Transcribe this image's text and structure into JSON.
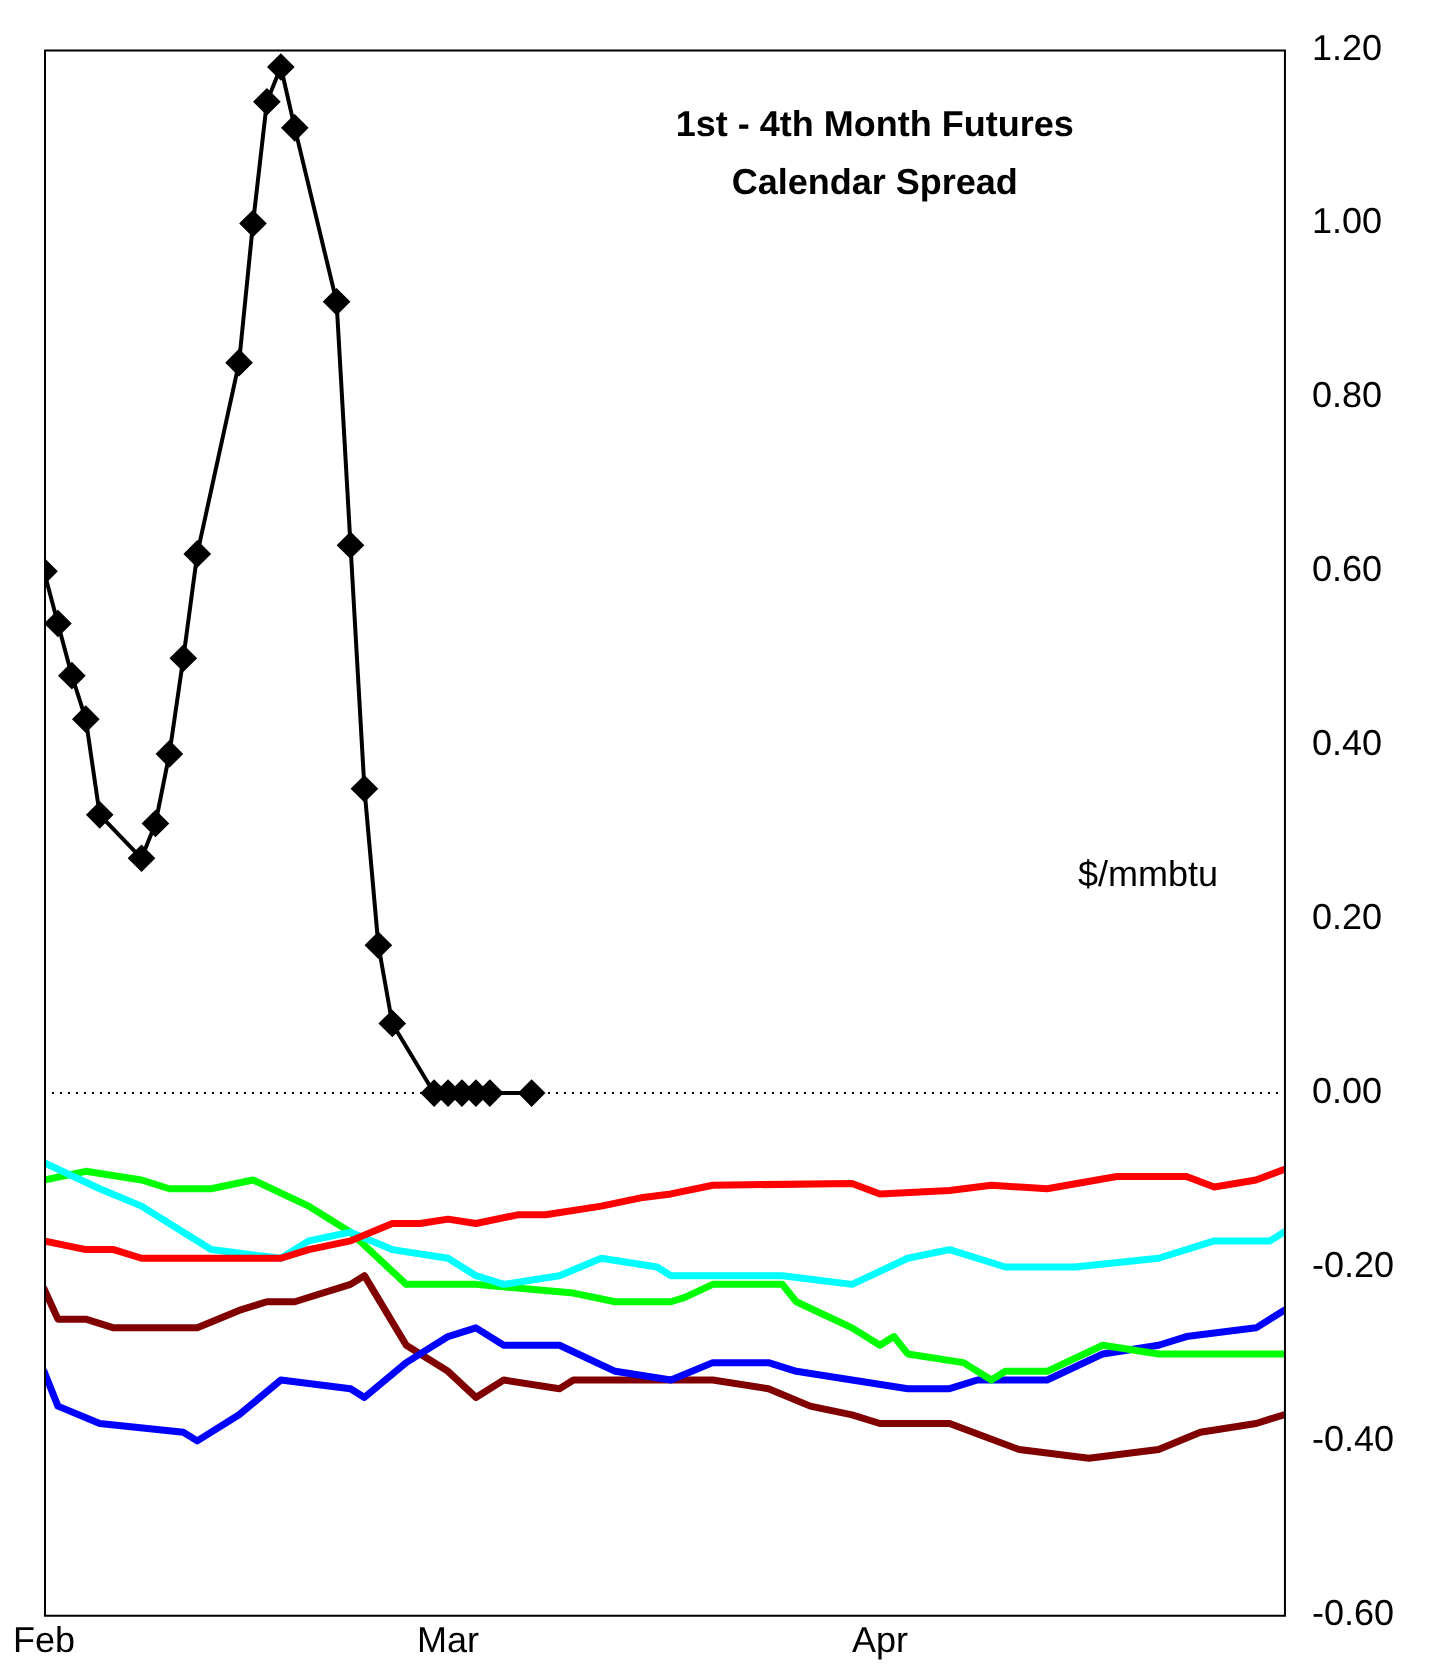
{
  "chart_data": {
    "type": "line",
    "title": "1st - 4th Month Futures\nCalendar Spread",
    "ylabel": "$/mmbtu",
    "xlim": [
      "--02-01",
      "--04-30"
    ],
    "xticks": [
      {
        "value": "--02-01",
        "label": "Feb"
      },
      {
        "value": "--03-01",
        "label": "Mar"
      },
      {
        "value": "--04-01",
        "label": "Apr"
      }
    ],
    "ylim": [
      -0.6,
      1.2
    ],
    "yticks": [
      {
        "value": -0.6,
        "label": "-0.60"
      },
      {
        "value": -0.4,
        "label": "-0.40"
      },
      {
        "value": -0.2,
        "label": "-0.20"
      },
      {
        "value": 0,
        "label": "0.00"
      },
      {
        "value": 0.2,
        "label": "0.20"
      },
      {
        "value": 0.4,
        "label": "0.40"
      },
      {
        "value": 0.6,
        "label": "0.60"
      },
      {
        "value": 0.8,
        "label": "0.80"
      },
      {
        "value": 1,
        "label": "1.00"
      },
      {
        "value": 1.2,
        "label": "1.20"
      }
    ],
    "grid": false,
    "legend": false,
    "ref_lines": [
      {
        "axis": "y",
        "value": 0,
        "color": "#000000",
        "line_style": "dotted"
      }
    ],
    "series": [
      {
        "color": "#ff0000",
        "marker": "none",
        "x": [
          "--02-01",
          "--02-04",
          "--02-06",
          "--02-08",
          "--02-11",
          "--02-16",
          "--02-18",
          "--02-20",
          "--02-23",
          "--02-26",
          "--02-28",
          "--03-01",
          "--03-03",
          "--03-06",
          "--03-08",
          "--03-12",
          "--03-15",
          "--03-17",
          "--03-20",
          "--03-30",
          "--04-01",
          "--04-06",
          "--04-09",
          "--04-13",
          "--04-18",
          "--04-23",
          "--04-25",
          "--04-28",
          "--04-30"
        ],
        "values": [
          -0.17,
          -0.18,
          -0.18,
          -0.19,
          -0.19,
          -0.19,
          -0.19,
          -0.18,
          -0.17,
          -0.15,
          -0.15,
          -0.145,
          -0.15,
          -0.14,
          -0.14,
          -0.13,
          -0.12,
          -0.116,
          -0.106,
          -0.104,
          -0.116,
          -0.112,
          -0.106,
          -0.11,
          -0.096,
          -0.096,
          -0.108,
          -0.1,
          -0.088
        ]
      },
      {
        "color": "#00ffff",
        "marker": "none",
        "x": [
          "--02-01",
          "--02-05",
          "--02-08",
          "--02-11",
          "--02-13",
          "--02-18",
          "--02-20",
          "--02-23",
          "--02-26",
          "--03-01",
          "--03-03",
          "--03-05",
          "--03-09",
          "--03-12",
          "--03-16",
          "--03-17",
          "--03-20",
          "--03-25",
          "--03-30",
          "--04-03",
          "--04-06",
          "--04-10",
          "--04-15",
          "--04-21",
          "--04-25",
          "--04-29",
          "--04-30"
        ],
        "values": [
          -0.08,
          -0.11,
          -0.13,
          -0.16,
          -0.18,
          -0.19,
          -0.17,
          -0.16,
          -0.18,
          -0.19,
          -0.21,
          -0.22,
          -0.21,
          -0.19,
          -0.2,
          -0.21,
          -0.21,
          -0.21,
          -0.22,
          -0.19,
          -0.18,
          -0.2,
          -0.2,
          -0.19,
          -0.17,
          -0.17,
          -0.16
        ]
      },
      {
        "color": "#00ff00",
        "marker": "none",
        "x": [
          "--02-01",
          "--02-04",
          "--02-08",
          "--02-10",
          "--02-13",
          "--02-16",
          "--02-20",
          "--02-23",
          "--02-27",
          "--03-03",
          "--03-10",
          "--03-13",
          "--03-17",
          "--03-18",
          "--03-20",
          "--03-25",
          "--03-26",
          "--03-30",
          "--04-01",
          "--04-02",
          "--04-03",
          "--04-07",
          "--04-09",
          "--04-10",
          "--04-13",
          "--04-17",
          "--04-21",
          "--04-26",
          "--04-30"
        ],
        "values": [
          -0.1,
          -0.09,
          -0.1,
          -0.11,
          -0.11,
          -0.1,
          -0.13,
          -0.16,
          -0.22,
          -0.22,
          -0.23,
          -0.24,
          -0.24,
          -0.235,
          -0.22,
          -0.22,
          -0.24,
          -0.27,
          -0.29,
          -0.28,
          -0.3,
          -0.31,
          -0.33,
          -0.32,
          -0.32,
          -0.29,
          -0.3,
          -0.3,
          -0.3
        ]
      },
      {
        "color": "#0000ff",
        "marker": "none",
        "x": [
          "--02-01",
          "--02-02",
          "--02-05",
          "--02-11",
          "--02-12",
          "--02-15",
          "--02-18",
          "--02-23",
          "--02-24",
          "--02-27",
          "--03-01",
          "--03-03",
          "--03-05",
          "--03-09",
          "--03-13",
          "--03-17",
          "--03-20",
          "--03-24",
          "--03-26",
          "--03-30",
          "--04-03",
          "--04-06",
          "--04-08",
          "--04-13",
          "--04-17",
          "--04-21",
          "--04-23",
          "--04-28",
          "--04-30"
        ],
        "values": [
          -0.32,
          -0.36,
          -0.38,
          -0.39,
          -0.4,
          -0.37,
          -0.33,
          -0.34,
          -0.35,
          -0.31,
          -0.28,
          -0.27,
          -0.29,
          -0.29,
          -0.32,
          -0.33,
          -0.31,
          -0.31,
          -0.32,
          -0.33,
          -0.34,
          -0.34,
          -0.33,
          -0.33,
          -0.3,
          -0.29,
          -0.28,
          -0.27,
          -0.25
        ]
      },
      {
        "color": "#800000",
        "marker": "none",
        "x": [
          "--02-01",
          "--02-02",
          "--02-04",
          "--02-06",
          "--02-09",
          "--02-12",
          "--02-15",
          "--02-17",
          "--02-19",
          "--02-23",
          "--02-24",
          "--02-27",
          "--03-01",
          "--03-03",
          "--03-05",
          "--03-09",
          "--03-10",
          "--03-17",
          "--03-20",
          "--03-24",
          "--03-27",
          "--03-30",
          "--04-01",
          "--04-06",
          "--04-11",
          "--04-16",
          "--04-21",
          "--04-24",
          "--04-28",
          "--04-30"
        ],
        "values": [
          -0.225,
          -0.26,
          -0.26,
          -0.27,
          -0.27,
          -0.27,
          -0.25,
          -0.24,
          -0.24,
          -0.22,
          -0.21,
          -0.29,
          -0.32,
          -0.35,
          -0.33,
          -0.34,
          -0.33,
          -0.33,
          -0.33,
          -0.34,
          -0.36,
          -0.37,
          -0.38,
          -0.38,
          -0.41,
          -0.42,
          -0.41,
          -0.39,
          -0.38,
          -0.37
        ]
      },
      {
        "color": "#000000",
        "marker": "diamond",
        "x": [
          "--02-01",
          "--02-02",
          "--02-03",
          "--02-04",
          "--02-05",
          "--02-08",
          "--02-09",
          "--02-10",
          "--02-11",
          "--02-12",
          "--02-15",
          "--02-16",
          "--02-17",
          "--02-18",
          "--02-19",
          "--02-22",
          "--02-23",
          "--02-24",
          "--02-25",
          "--02-26",
          "--02-29",
          "--03-01",
          "--03-02",
          "--03-03",
          "--03-04",
          "--03-07"
        ],
        "values": [
          0.6,
          0.54,
          0.48,
          0.43,
          0.32,
          0.27,
          0.31,
          0.39,
          0.5,
          0.62,
          0.84,
          1.0,
          1.14,
          1.18,
          1.11,
          0.91,
          0.63,
          0.35,
          0.17,
          0.08,
          0,
          0,
          0,
          0,
          0,
          0
        ]
      }
    ]
  }
}
